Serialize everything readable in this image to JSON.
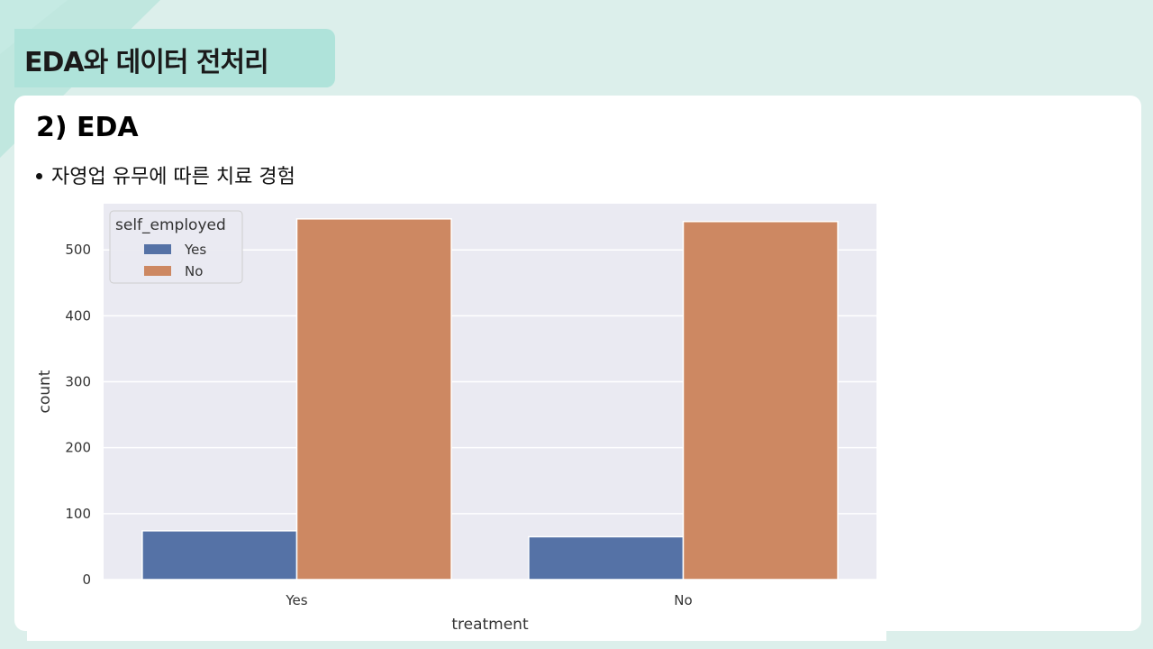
{
  "header": {
    "title": "EDA와 데이터 전처리"
  },
  "section": {
    "title": "2) EDA"
  },
  "bullet": {
    "text": "자영업 유무에 따른 치료 경험"
  },
  "colors": {
    "background": "#dcefeb",
    "header_tab": "#afe3da",
    "plot_bg": "#eaeaf2",
    "series_yes": "#5572a6",
    "series_no": "#cd8862"
  },
  "chart_data": {
    "type": "bar",
    "xlabel": "treatment",
    "ylabel": "count",
    "categories": [
      "Yes",
      "No"
    ],
    "ylim": [
      0,
      570
    ],
    "yticks": [
      0,
      100,
      200,
      300,
      400,
      500
    ],
    "grid": true,
    "legend_position": "top-left",
    "legend_title": "self_employed",
    "series": [
      {
        "name": "Yes",
        "color": "#5572a6",
        "values": [
          74,
          65
        ]
      },
      {
        "name": "No",
        "color": "#cd8862",
        "values": [
          547,
          543
        ]
      }
    ]
  }
}
